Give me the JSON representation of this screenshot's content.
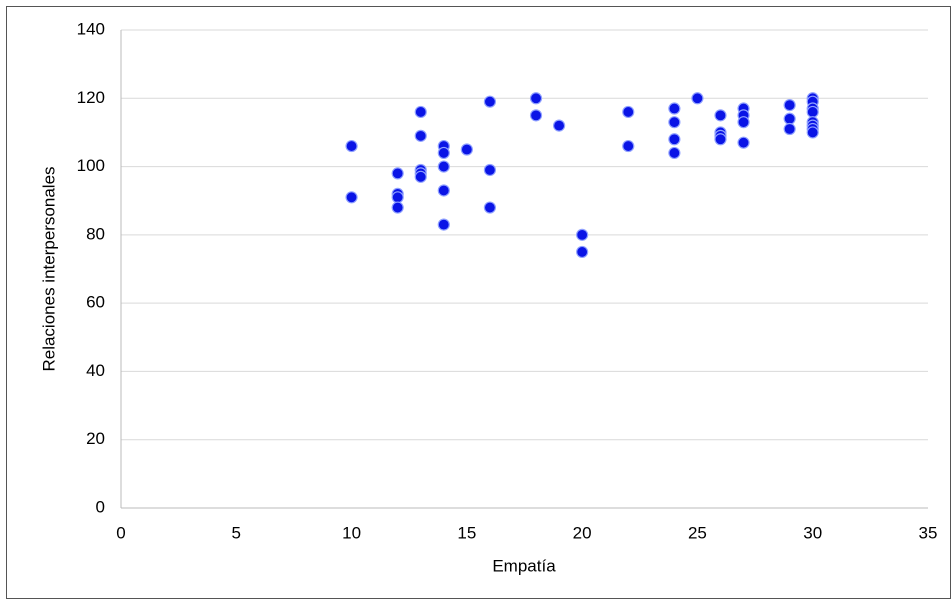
{
  "chart_data": {
    "type": "scatter",
    "x_label": "Empatía",
    "y_label": "Relaciones interpersonales",
    "color": "#0a14e6",
    "x": [
      10,
      10,
      12,
      12,
      12,
      12,
      13,
      13,
      13,
      13,
      13,
      14,
      14,
      14,
      14,
      14,
      15,
      16,
      16,
      16,
      18,
      18,
      19,
      20,
      20,
      22,
      22,
      24,
      24,
      24,
      24,
      25,
      26,
      26,
      26,
      26,
      27,
      27,
      27,
      27,
      29,
      29,
      29,
      30,
      30,
      30,
      30,
      30,
      30,
      30,
      30
    ],
    "y": [
      106,
      91,
      98,
      92,
      91,
      88,
      116,
      109,
      99,
      98,
      97,
      106,
      104,
      100,
      93,
      83,
      105,
      119,
      99,
      88,
      120,
      115,
      112,
      80,
      75,
      116,
      106,
      117,
      113,
      108,
      104,
      120,
      115,
      110,
      109,
      108,
      117,
      115,
      113,
      107,
      118,
      114,
      111,
      120,
      119,
      117,
      116,
      113,
      112,
      111,
      110
    ],
    "xlim": [
      0,
      35
    ],
    "xticks": [
      0,
      5,
      10,
      15,
      20,
      25,
      30,
      35
    ],
    "ylim": [
      0,
      140
    ],
    "yticks": [
      0,
      20,
      40,
      60,
      80,
      100,
      120,
      140
    ],
    "grid": true
  }
}
